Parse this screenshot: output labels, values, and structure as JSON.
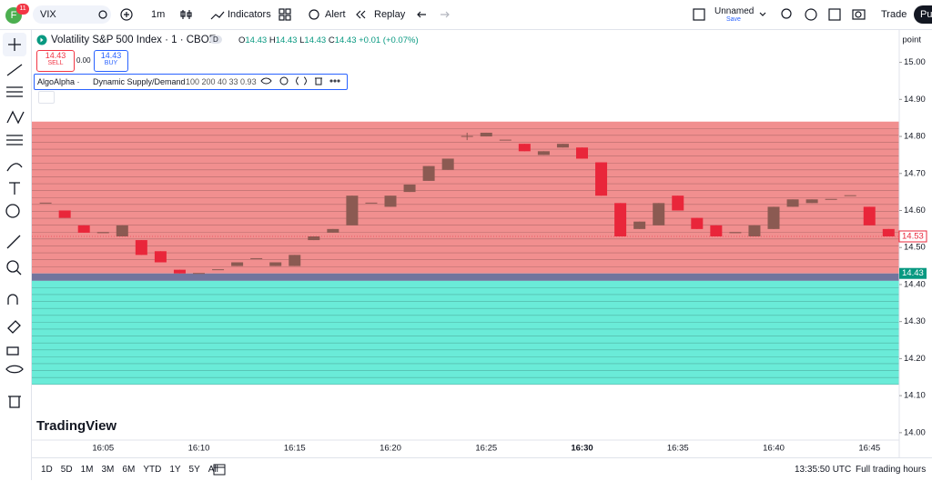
{
  "toolbar": {
    "badge_letter": "F",
    "badge_count": "11",
    "symbol": "VIX",
    "interval": "1m",
    "indicators": "Indicators",
    "alert": "Alert",
    "replay": "Replay",
    "layout_name": "Unnamed",
    "save": "Save",
    "trade": "Trade",
    "publish": "Pu"
  },
  "legend": {
    "title": "Volatility S&P 500 Index · 1 · CBOE",
    "delay": "D",
    "o_label": "O",
    "o": "14.43",
    "h_label": "H",
    "h": "14.43",
    "l_label": "L",
    "l": "14.43",
    "c_label": "C",
    "c": "14.43",
    "change": "+0.01 (+0.07%)",
    "sell_price": "14.43",
    "sell": "SELL",
    "spread": "0.00",
    "buy_price": "14.43",
    "buy": "BUY",
    "indicator_author": "AlgoAlpha ·",
    "indicator_name": "Dynamic Supply/Demand",
    "indicator_params": "100 200 40 33 0.93"
  },
  "price_scale": {
    "unit": "point",
    "last_price": "14.53",
    "indicator_price": "14.43"
  },
  "watermark": "TradingView",
  "bottom_bar": {
    "ranges": [
      "1D",
      "5D",
      "1M",
      "3M",
      "6M",
      "YTD",
      "1Y",
      "5Y",
      "All"
    ],
    "clock": "13:35:50 UTC",
    "session": "Full trading hours"
  },
  "chart_data": {
    "type": "candlestick",
    "categories": [
      null,
      null,
      null,
      "16:05",
      null,
      null,
      null,
      null,
      "16:10",
      null,
      null,
      null,
      null,
      "16:15",
      null,
      null,
      null,
      null,
      "16:20",
      null,
      null,
      null,
      null,
      "16:25",
      null,
      null,
      null,
      null,
      "16:30",
      null,
      null,
      null,
      null,
      "16:35",
      null,
      null,
      null,
      null,
      "16:40",
      null,
      null,
      null,
      null,
      "16:45",
      null
    ],
    "open": [
      14.62,
      14.6,
      14.56,
      14.54,
      14.53,
      14.52,
      14.49,
      14.44,
      14.43,
      14.44,
      14.45,
      14.47,
      14.45,
      14.45,
      14.52,
      14.54,
      14.56,
      14.62,
      14.61,
      14.65,
      14.68,
      14.71,
      14.8,
      14.8,
      14.79,
      14.78,
      14.75,
      14.77,
      14.77,
      14.73,
      14.62,
      14.55,
      14.56,
      14.64,
      14.58,
      14.56,
      14.54,
      14.53,
      14.55,
      14.61,
      14.62,
      14.63,
      14.64,
      14.61,
      14.55
    ],
    "high": [
      14.62,
      14.6,
      14.56,
      14.54,
      14.56,
      14.52,
      14.49,
      14.44,
      14.43,
      14.44,
      14.46,
      14.47,
      14.46,
      14.48,
      14.53,
      14.55,
      14.64,
      14.62,
      14.64,
      14.67,
      14.72,
      14.74,
      14.81,
      14.81,
      14.79,
      14.78,
      14.76,
      14.78,
      14.77,
      14.73,
      14.62,
      14.57,
      14.62,
      14.64,
      14.58,
      14.56,
      14.54,
      14.56,
      14.61,
      14.63,
      14.63,
      14.63,
      14.64,
      14.61,
      14.55
    ],
    "low": [
      14.62,
      14.58,
      14.54,
      14.54,
      14.53,
      14.48,
      14.46,
      14.43,
      14.43,
      14.44,
      14.45,
      14.47,
      14.45,
      14.45,
      14.52,
      14.54,
      14.56,
      14.62,
      14.61,
      14.65,
      14.68,
      14.71,
      14.79,
      14.8,
      14.79,
      14.76,
      14.75,
      14.77,
      14.74,
      14.64,
      14.53,
      14.55,
      14.56,
      14.6,
      14.55,
      14.53,
      14.54,
      14.53,
      14.55,
      14.61,
      14.62,
      14.63,
      14.64,
      14.56,
      14.53
    ],
    "close": [
      14.62,
      14.58,
      14.54,
      14.54,
      14.56,
      14.48,
      14.46,
      14.43,
      14.43,
      14.44,
      14.46,
      14.47,
      14.46,
      14.48,
      14.53,
      14.55,
      14.64,
      14.62,
      14.64,
      14.67,
      14.72,
      14.74,
      14.8,
      14.81,
      14.79,
      14.76,
      14.76,
      14.78,
      14.74,
      14.64,
      14.53,
      14.57,
      14.62,
      14.6,
      14.55,
      14.53,
      14.54,
      14.56,
      14.61,
      14.63,
      14.63,
      14.63,
      14.64,
      14.56,
      14.53
    ],
    "up_color": "#8b5a52",
    "down_color": "#e9263a",
    "zones": {
      "supply": [
        14.43,
        14.84
      ],
      "equilibrium": [
        14.41,
        14.43
      ],
      "demand": [
        14.13,
        14.41
      ]
    },
    "zone_colors": {
      "supply": "#ef8383",
      "equilibrium": "#6a6e98",
      "demand": "#62ead6"
    },
    "ylim": [
      13.98,
      15.08
    ],
    "yticks": [
      {
        "value": 14.0,
        "label": "14.00"
      },
      {
        "value": 14.1,
        "label": "14.10"
      },
      {
        "value": 14.2,
        "label": "14.20"
      },
      {
        "value": 14.3,
        "label": "14.30"
      },
      {
        "value": 14.4,
        "label": "14.40"
      },
      {
        "value": 14.5,
        "label": "14.50"
      },
      {
        "value": 14.6,
        "label": "14.60"
      },
      {
        "value": 14.7,
        "label": "14.70"
      },
      {
        "value": 14.8,
        "label": "14.80"
      },
      {
        "value": 14.9,
        "label": "14.90"
      },
      {
        "value": 15.0,
        "label": "15.00"
      }
    ],
    "last_value": 14.53,
    "indicator_value": 14.43
  }
}
